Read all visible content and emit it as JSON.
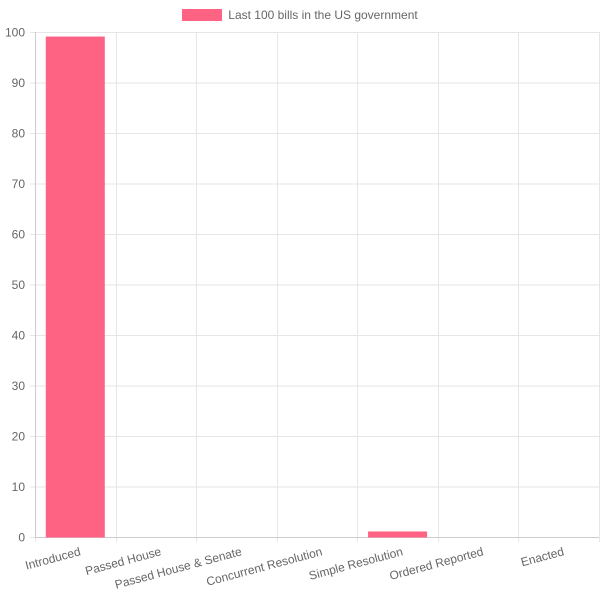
{
  "colors": {
    "bar_fill": "#ff6384",
    "bar_stroke": "#ff6384",
    "grid": "#e6e6e6",
    "axis": "#cccccc",
    "tick_text": "#666666"
  },
  "chart_data": {
    "type": "bar",
    "legend": {
      "label": "Last 100 bills in the US government",
      "placement": "top-center"
    },
    "categories": [
      "Introduced",
      "Passed House",
      "Passed House & Senate",
      "Concurrent Resolution",
      "Simple Resolution",
      "Ordered Reported",
      "Enacted"
    ],
    "series": [
      {
        "name": "Last 100 bills in the US government",
        "values": [
          99,
          0,
          0,
          0,
          1,
          0,
          0
        ]
      }
    ],
    "ylim": [
      0,
      100
    ],
    "yticks": [
      0,
      10,
      20,
      30,
      40,
      50,
      60,
      70,
      80,
      90,
      100
    ],
    "grid": true,
    "xlabel": "",
    "ylabel": ""
  }
}
